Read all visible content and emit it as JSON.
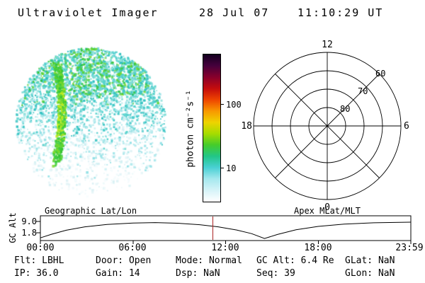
{
  "header": {
    "title": "Ultraviolet Imager",
    "date": "28 Jul 07",
    "time": "11:10:29 UT"
  },
  "colorbar": {
    "label": "photon cm⁻²s⁻¹",
    "tick_upper": "100",
    "tick_lower": "10",
    "gradient_top_to_bottom": [
      "#140020",
      "#46003c",
      "#88002c",
      "#c40c0c",
      "#ee4400",
      "#f89800",
      "#eed400",
      "#a6dc00",
      "#44cc2c",
      "#22c688",
      "#4ad0d4",
      "#a6e8ee",
      "#d6f3f8",
      "#ffffff"
    ]
  },
  "aurora": {
    "seed": 1234,
    "palette": {
      "strong_green": [
        "#2fc32f",
        "#3ecd49",
        "#57d235",
        "#7bd92c"
      ],
      "bright_core": [
        "#a8e424",
        "#c4ec1e"
      ],
      "cyan": [
        "#3fc9c9",
        "#58d3cd",
        "#2fc0c0",
        "#7eddd6"
      ],
      "pale": [
        "#a9e6ea",
        "#c3eef1",
        "#91e0e5"
      ],
      "faint": [
        "#e3f4f7",
        "#eef9fb",
        "#d6eff3",
        "#f5fcfd"
      ]
    }
  },
  "polar": {
    "hour_top": "12",
    "hour_left": "18",
    "hour_right": "6",
    "hour_bottom": "0",
    "lat_labels": [
      "60",
      "70",
      "80"
    ]
  },
  "timeline": {
    "ylabel": "GC Alt",
    "ytick_upper": "9.0",
    "ytick_lower": "1.8",
    "title_left": "Geographic Lat/Lon",
    "title_right": "Apex MLat/MLT",
    "xticks": [
      "00:00",
      "06:00",
      "12:00",
      "18:00",
      "23:59"
    ],
    "marker_frac": 0.4656,
    "marker_color": "#aa2222",
    "curve_points_frac_re": [
      [
        0,
        1.6
      ],
      [
        0.03,
        3.3
      ],
      [
        0.07,
        5.2
      ],
      [
        0.12,
        6.8
      ],
      [
        0.18,
        7.9
      ],
      [
        0.25,
        8.6
      ],
      [
        0.31,
        8.8
      ],
      [
        0.37,
        8.5
      ],
      [
        0.43,
        7.8
      ],
      [
        0.48,
        6.8
      ],
      [
        0.53,
        5.3
      ],
      [
        0.57,
        3.6
      ],
      [
        0.605,
        1.3
      ],
      [
        0.64,
        3.2
      ],
      [
        0.69,
        5.4
      ],
      [
        0.75,
        7.0
      ],
      [
        0.82,
        8.1
      ],
      [
        0.9,
        8.7
      ],
      [
        1.0,
        9.0
      ]
    ]
  },
  "status": {
    "rows": [
      [
        "Flt: LBHL",
        "Door: Open",
        "Mode: Normal",
        "GC Alt: 6.4 Re",
        "GLat: NaN"
      ],
      [
        "IP: 36.0",
        "Gain: 14",
        "Dsp: NaN",
        "Seq: 39",
        "GLon: NaN"
      ]
    ]
  }
}
